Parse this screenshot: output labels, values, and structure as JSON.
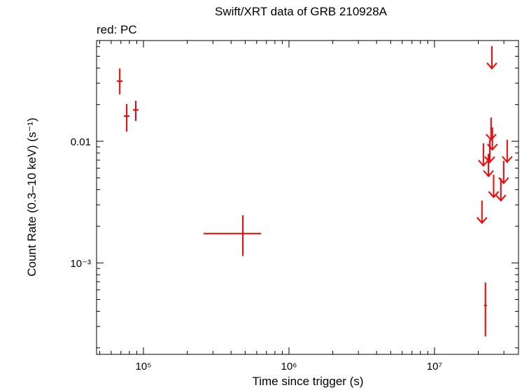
{
  "chart_data": {
    "type": "scatter",
    "title": "Swift/XRT data of GRB 210928A",
    "subtitle": "red: PC",
    "xlabel": "Time since trigger (s)",
    "ylabel": "Count Rate (0.3–10 keV) (s⁻¹)",
    "xscale": "log",
    "yscale": "log",
    "xlim": [
      47600,
      37800000
    ],
    "ylim": [
      0.000177,
      0.0673
    ],
    "xticks": [
      {
        "value": 100000,
        "label": "10⁵"
      },
      {
        "value": 1000000,
        "label": "10⁶"
      },
      {
        "value": 10000000,
        "label": "10⁷"
      }
    ],
    "yticks": [
      {
        "value": 0.001,
        "label": "10⁻³"
      },
      0.01
    ],
    "xminorticks": [
      50000,
      60000,
      70000,
      80000,
      90000,
      200000,
      300000,
      400000,
      500000,
      600000,
      700000,
      800000,
      900000,
      2000000,
      3000000,
      4000000,
      5000000,
      6000000,
      7000000,
      8000000,
      9000000,
      20000000,
      30000000
    ],
    "yminorticks": [
      0.0002,
      0.0003,
      0.0004,
      0.0005,
      0.0006,
      0.0007,
      0.0008,
      0.0009,
      0.002,
      0.003,
      0.004,
      0.005,
      0.006,
      0.007,
      0.008,
      0.009,
      0.02,
      0.03,
      0.04,
      0.05,
      0.06
    ],
    "series": [
      {
        "color": "#ff0000",
        "x": [
          68700,
          76700,
          88500,
          482000,
          22400000
        ],
        "x_lo": [
          65600,
          73300,
          84700,
          259000,
          21900000
        ],
        "x_hi": [
          71800,
          80200,
          92500,
          643000,
          22900000
        ],
        "values": [
          0.0312,
          0.0161,
          0.0181,
          0.00174,
          0.000446
        ],
        "y_lo": [
          0.0243,
          0.012,
          0.0147,
          0.00114,
          0.000249
        ],
        "y_hi": [
          0.0396,
          0.0202,
          0.0215,
          0.00246,
          0.00069
        ]
      },
      {
        "color": "#ff0000",
        "upper_limit": true,
        "x": [
          24800000,
          24500000,
          25000000,
          21700000,
          24000000,
          23500000,
          31600000,
          29900000,
          25500000,
          28600000,
          21200000
        ],
        "values": [
          0.0605,
          0.01567,
          0.013,
          0.00961,
          0.01026,
          0.00788,
          0.0103,
          0.0069,
          0.0053,
          0.00496,
          0.00325
        ]
      }
    ]
  }
}
